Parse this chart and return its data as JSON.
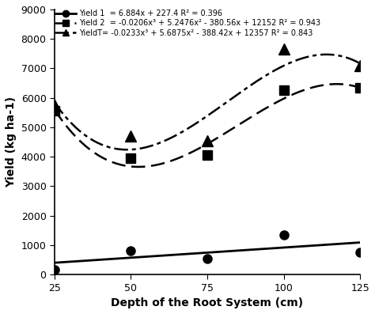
{
  "x_data": [
    25,
    50,
    75,
    100,
    125
  ],
  "yield1_points": [
    150,
    800,
    550,
    1350,
    750
  ],
  "yield2_points": [
    5550,
    3950,
    4050,
    6250,
    6350
  ],
  "yieldT_points": [
    5750,
    4700,
    4550,
    7650,
    7100
  ],
  "yield1_eq": {
    "a": 6.884,
    "b": 227.4
  },
  "yield2_eq": {
    "a3": -0.0206,
    "a2": 5.2476,
    "a1": -380.56,
    "a0": 12152
  },
  "yieldT_eq": {
    "a3": -0.0233,
    "a2": 5.6875,
    "a1": -388.42,
    "a0": 12357
  },
  "xlabel": "Depth of the Root System (cm)",
  "ylabel": "Yield (kg ha-1)",
  "ylim": [
    0,
    9000
  ],
  "xlim": [
    25,
    125
  ],
  "xticks": [
    25,
    50,
    75,
    100,
    125
  ],
  "yticks": [
    0,
    1000,
    2000,
    3000,
    4000,
    5000,
    6000,
    7000,
    8000,
    9000
  ],
  "legend_yield1": "Yield 1  = 6.884x + 227.4 R² = 0.396",
  "legend_yield2": "Yield 2  = -0.0206x³ + 5.2476x² - 380.56x + 12152 R² = 0.943",
  "legend_yieldT": "YieldT= -0.0233x³ + 5.6875x² - 388.42x + 12357 R² = 0.843",
  "line_color": "black",
  "bg_color": "white"
}
